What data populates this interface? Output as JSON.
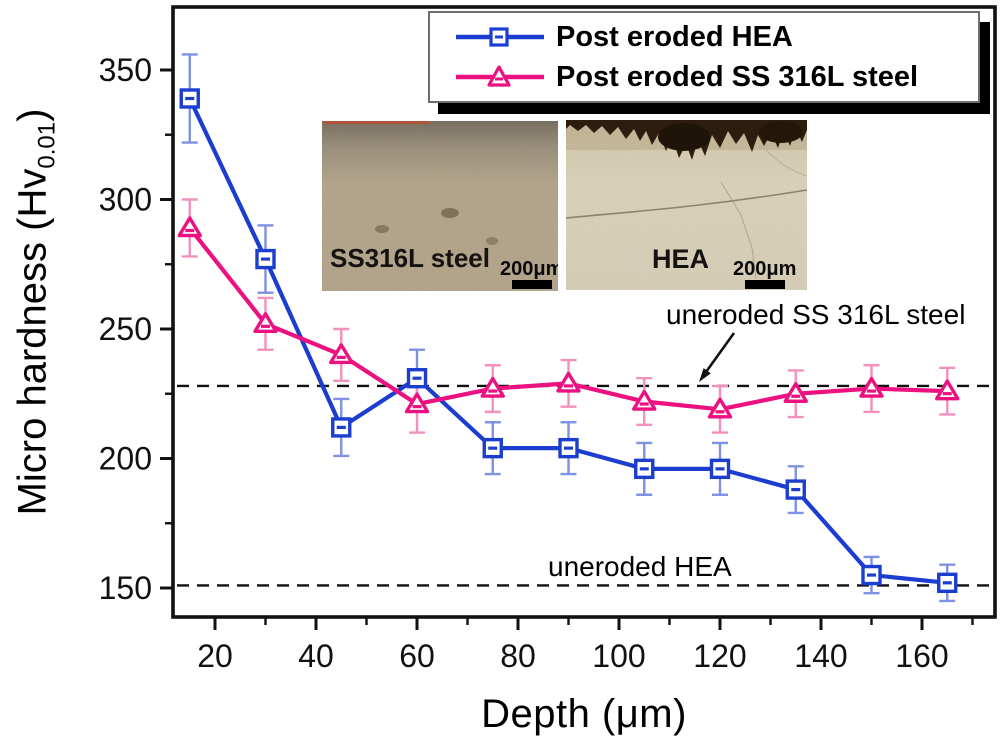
{
  "chart_data": {
    "type": "line",
    "title": "",
    "xlabel": "Depth (μm)",
    "ylabel": "Micro hardness (Hv0.01)",
    "ylabel_main": "Micro hardness (Hv",
    "ylabel_sub": "0.01",
    "ylabel_close": ")",
    "x": [
      15,
      30,
      45,
      60,
      75,
      90,
      105,
      120,
      135,
      150,
      165
    ],
    "series": [
      {
        "name": "Post eroded HEA",
        "marker": "square",
        "color": "#1c3ed0",
        "error_color": "#7e91e2",
        "values": [
          339,
          277,
          212,
          231,
          204,
          204,
          196,
          196,
          188,
          155,
          152
        ],
        "errors": [
          17,
          13,
          11,
          11,
          10,
          10,
          10,
          10,
          9,
          7,
          7
        ]
      },
      {
        "name": "Post eroded SS 316L steel",
        "marker": "triangle",
        "color": "#ec1080",
        "error_color": "#f390bd",
        "values": [
          289,
          252,
          240,
          221,
          227,
          229,
          222,
          219,
          225,
          227,
          226
        ],
        "errors": [
          11,
          10,
          10,
          11,
          9,
          9,
          9,
          9,
          9,
          9,
          9
        ]
      }
    ],
    "x_ticks": [
      20,
      40,
      60,
      80,
      100,
      120,
      140,
      160
    ],
    "x_minor_ticks": [
      30,
      50,
      70,
      90,
      110,
      130,
      150,
      170
    ],
    "y_ticks": [
      150,
      200,
      250,
      300,
      350
    ],
    "y_minor_ticks": [
      175,
      225,
      275,
      325
    ],
    "xlim": [
      11.7,
      174.5
    ],
    "ylim": [
      138.8,
      374.3
    ],
    "grid": false,
    "legend_position": "top-right",
    "ref_lines": [
      {
        "value": 228,
        "label": "uneroded SS 316L steel"
      },
      {
        "value": 151,
        "label": "uneroded HEA"
      }
    ]
  },
  "legend": {
    "items": [
      {
        "label": "Post eroded HEA"
      },
      {
        "label": "Post eroded SS 316L steel"
      }
    ]
  },
  "annotations": {
    "ss_line_label": "uneroded SS 316L steel",
    "hea_line_label": "uneroded HEA"
  },
  "insets": [
    {
      "label": "SS316L steel",
      "scale_text": "200μm"
    },
    {
      "label": "HEA",
      "scale_text": "200μm"
    }
  ]
}
